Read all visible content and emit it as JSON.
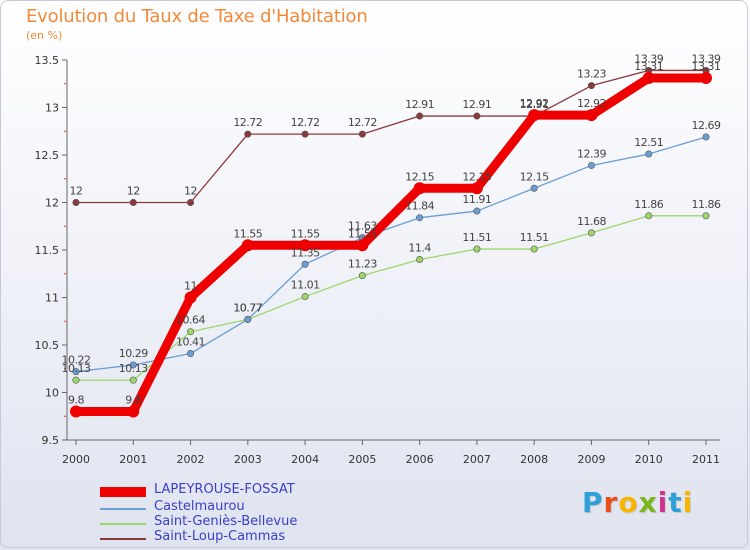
{
  "header": {
    "title": "Evolution du Taux de Taxe d'Habitation",
    "subtitle": "(en %)"
  },
  "logo": {
    "text": "Proxiti",
    "letters": [
      "P",
      "r",
      "o",
      "x",
      "i",
      "t",
      "i"
    ],
    "colors": [
      "#2f9fd8",
      "#e94e1b",
      "#f5b500",
      "#7ab51d",
      "#d2328f",
      "#2f9fd8",
      "#f5b500"
    ]
  },
  "chart_data": {
    "type": "line",
    "title": "Evolution du Taux de Taxe d'Habitation",
    "subtitle": "(en %)",
    "xlabel": "",
    "ylabel": "",
    "x": [
      2000,
      2001,
      2002,
      2003,
      2004,
      2005,
      2006,
      2007,
      2008,
      2009,
      2010,
      2011
    ],
    "ylim": [
      9.5,
      13.5
    ],
    "yticks": [
      9.5,
      10,
      10.5,
      11,
      11.5,
      12,
      12.5,
      13,
      13.5
    ],
    "grid": false,
    "legend_position": "bottom-left",
    "series": [
      {
        "name": "LAPEYROUSE-FOSSAT",
        "color": "#ee0000",
        "values": [
          9.8,
          9.8,
          11,
          11.55,
          11.55,
          11.55,
          12.15,
          12.15,
          12.92,
          12.92,
          13.31,
          13.31
        ],
        "labels": [
          "9.8",
          "9.8",
          "11",
          "11.55",
          "11.55",
          "11.55",
          "12.15",
          "12.15",
          "12.92",
          "12.92",
          "13.31",
          "13.31"
        ]
      },
      {
        "name": "Castelmaurou",
        "color": "#6b9dd1",
        "values": [
          10.22,
          10.29,
          10.41,
          10.77,
          11.35,
          11.63,
          11.84,
          11.91,
          12.15,
          12.39,
          12.51,
          12.69
        ],
        "labels": [
          "10.22",
          "10.29",
          "10.41",
          "10.77",
          "11.35",
          "11.63",
          "11.84",
          "11.91",
          "12.15",
          "12.39",
          "12.51",
          "12.69"
        ]
      },
      {
        "name": "Saint-Geniès-Bellevue",
        "color": "#9ed66a",
        "values": [
          10.13,
          10.13,
          10.64,
          10.77,
          11.01,
          11.23,
          11.4,
          11.51,
          11.51,
          11.68,
          11.86,
          11.86
        ],
        "labels": [
          "10.13",
          "10.13",
          "10.64",
          "10.77",
          "11.01",
          "11.23",
          "11.4",
          "11.51",
          "11.51",
          "11.68",
          "11.86",
          "11.86"
        ]
      },
      {
        "name": "Saint-Loup-Cammas",
        "color": "#8b3a3a",
        "values": [
          12,
          12,
          12,
          12.72,
          12.72,
          12.72,
          12.91,
          12.91,
          12.91,
          13.23,
          13.39,
          13.39
        ],
        "labels": [
          "12",
          "12",
          "12",
          "12.72",
          "12.72",
          "12.72",
          "12.91",
          "12.91",
          "12.91",
          "13.23",
          "13.39",
          "13.39"
        ]
      }
    ]
  }
}
